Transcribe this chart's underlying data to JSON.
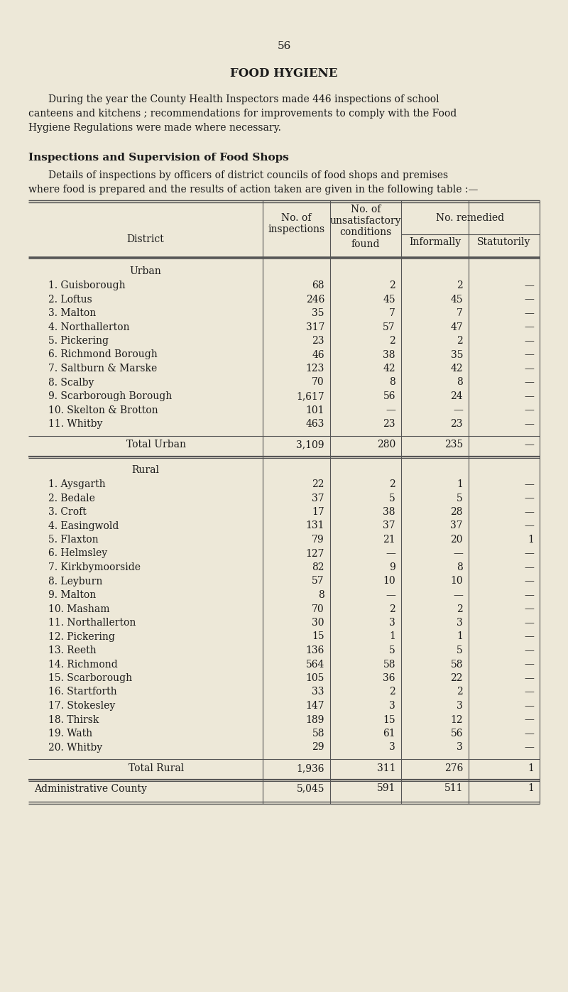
{
  "page_number": "56",
  "title": "FOOD HYGIENE",
  "intro_line1": "During the year the County Health Inspectors made 446 inspections of school",
  "intro_line2": "canteens and kitchens ; recommendations for improvements to comply with the Food",
  "intro_line3": "Hygiene Regulations were made where necessary.",
  "section_title": "Inspections and Supervision of Food Shops",
  "section_line1": "Details of inspections by officers of district councils of food shops and premises",
  "section_line2": "where food is prepared and the results of action taken are given in the following table :—",
  "header_district": "District",
  "header_inspections": "No. of\ninspections",
  "header_unsat": "No. of\nunsatisfactory\nconditions\nfound",
  "header_remedied": "No. remedied",
  "header_informally": "Informally",
  "header_statutorily": "Statutorily",
  "urban_label": "Urban",
  "urban_rows": [
    [
      "1. Guisborough",
      "68",
      "2",
      "2",
      "—"
    ],
    [
      "2. Loftus",
      "246",
      "45",
      "45",
      "—"
    ],
    [
      "3. Malton",
      "35",
      "7",
      "7",
      "—"
    ],
    [
      "4. Northallerton",
      "317",
      "57",
      "47",
      "—"
    ],
    [
      "5. Pickering",
      "23",
      "2",
      "2",
      "—"
    ],
    [
      "6. Richmond Borough",
      "46",
      "38",
      "35",
      "—"
    ],
    [
      "7. Saltburn & Marske",
      "123",
      "42",
      "42",
      "—"
    ],
    [
      "8. Scalby",
      "70",
      "8",
      "8",
      "—"
    ],
    [
      "9. Scarborough Borough",
      "1,617",
      "56",
      "24",
      "—"
    ],
    [
      "10. Skelton & Brotton",
      "101",
      "—",
      "—",
      "—"
    ],
    [
      "11. Whitby",
      "463",
      "23",
      "23",
      "—"
    ]
  ],
  "urban_total": [
    "Total Urban",
    "3,109",
    "280",
    "235",
    "—"
  ],
  "rural_label": "Rural",
  "rural_rows": [
    [
      "1. Aysgarth",
      "22",
      "2",
      "1",
      "—"
    ],
    [
      "2. Bedale",
      "37",
      "5",
      "5",
      "—"
    ],
    [
      "3. Croft",
      "17",
      "38",
      "28",
      "—"
    ],
    [
      "4. Easingwold",
      "131",
      "37",
      "37",
      "—"
    ],
    [
      "5. Flaxton",
      "79",
      "21",
      "20",
      "1"
    ],
    [
      "6. Helmsley",
      "127",
      "—",
      "—",
      "—"
    ],
    [
      "7. Kirkbymoorside",
      "82",
      "9",
      "8",
      "—"
    ],
    [
      "8. Leyburn",
      "57",
      "10",
      "10",
      "—"
    ],
    [
      "9. Malton",
      "8",
      "—",
      "—",
      "—"
    ],
    [
      "10. Masham",
      "70",
      "2",
      "2",
      "—"
    ],
    [
      "11. Northallerton",
      "30",
      "3",
      "3",
      "—"
    ],
    [
      "12. Pickering",
      "15",
      "1",
      "1",
      "—"
    ],
    [
      "13. Reeth",
      "136",
      "5",
      "5",
      "—"
    ],
    [
      "14. Richmond",
      "564",
      "58",
      "58",
      "—"
    ],
    [
      "15. Scarborough",
      "105",
      "36",
      "22",
      "—"
    ],
    [
      "16. Startforth",
      "33",
      "2",
      "2",
      "—"
    ],
    [
      "17. Stokesley",
      "147",
      "3",
      "3",
      "—"
    ],
    [
      "18. Thirsk",
      "189",
      "15",
      "12",
      "—"
    ],
    [
      "19. Wath",
      "58",
      "61",
      "56",
      "—"
    ],
    [
      "20. Whitby",
      "29",
      "3",
      "3",
      "—"
    ]
  ],
  "rural_total": [
    "Total Rural",
    "1,936",
    "311",
    "276",
    "1"
  ],
  "admin_total": [
    "Administrative County",
    "5,045",
    "591",
    "511",
    "1"
  ],
  "bg_color": "#ede8d8",
  "text_color": "#1a1a1a",
  "line_color": "#555555"
}
